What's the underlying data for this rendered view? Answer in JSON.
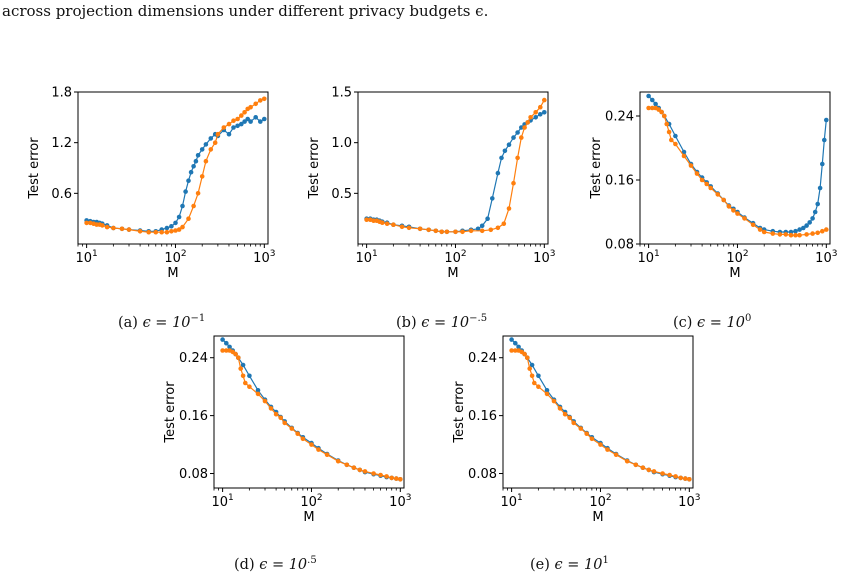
{
  "caption": {
    "text": "across projection dimensions under different privacy budgets ϵ."
  },
  "colors": {
    "series_a": "#1f77b4",
    "series_b": "#ff7f0e"
  },
  "chart_data": [
    {
      "id": "a",
      "type": "line",
      "scale_x": "log",
      "subcaption": {
        "label": "(a)",
        "eq": "ϵ = 10",
        "exp": "−1"
      },
      "xlabel": "M",
      "ylabel": "Test error",
      "xlim": [
        8,
        1100
      ],
      "ylim": [
        0.0,
        1.8
      ],
      "xticks": [
        {
          "v": 10,
          "base": "10",
          "exp": "1"
        },
        {
          "v": 100,
          "base": "10",
          "exp": "2"
        },
        {
          "v": 1000,
          "base": "10",
          "exp": "3"
        }
      ],
      "yticks": [
        {
          "v": 0.6,
          "label": "0.6"
        },
        {
          "v": 1.2,
          "label": "1.2"
        },
        {
          "v": 1.8,
          "label": "1.8"
        }
      ],
      "series": [
        {
          "color": "#1f77b4",
          "x": [
            10,
            11,
            12,
            13,
            14,
            15,
            17,
            20,
            25,
            30,
            40,
            50,
            60,
            70,
            80,
            90,
            100,
            110,
            120,
            130,
            140,
            150,
            160,
            170,
            180,
            200,
            220,
            250,
            280,
            300,
            350,
            400,
            450,
            500,
            550,
            600,
            650,
            700,
            800,
            900,
            1000
          ],
          "y": [
            0.28,
            0.27,
            0.26,
            0.26,
            0.25,
            0.24,
            0.22,
            0.19,
            0.18,
            0.17,
            0.16,
            0.15,
            0.15,
            0.17,
            0.19,
            0.21,
            0.25,
            0.32,
            0.45,
            0.62,
            0.75,
            0.85,
            0.92,
            0.98,
            1.05,
            1.12,
            1.18,
            1.25,
            1.3,
            1.28,
            1.35,
            1.3,
            1.38,
            1.4,
            1.42,
            1.45,
            1.48,
            1.45,
            1.5,
            1.45,
            1.48
          ]
        },
        {
          "color": "#ff7f0e",
          "x": [
            10,
            11,
            12,
            13,
            14,
            15,
            17,
            20,
            25,
            30,
            40,
            50,
            60,
            70,
            80,
            90,
            100,
            110,
            120,
            140,
            160,
            180,
            200,
            220,
            250,
            280,
            300,
            350,
            400,
            450,
            500,
            550,
            600,
            650,
            700,
            800,
            900,
            1000
          ],
          "y": [
            0.25,
            0.25,
            0.24,
            0.23,
            0.23,
            0.22,
            0.2,
            0.19,
            0.18,
            0.17,
            0.15,
            0.14,
            0.14,
            0.14,
            0.14,
            0.15,
            0.16,
            0.17,
            0.2,
            0.3,
            0.45,
            0.6,
            0.8,
            0.98,
            1.12,
            1.2,
            1.3,
            1.38,
            1.42,
            1.46,
            1.48,
            1.52,
            1.56,
            1.6,
            1.62,
            1.66,
            1.7,
            1.72
          ]
        }
      ]
    },
    {
      "id": "b",
      "type": "line",
      "scale_x": "log",
      "subcaption": {
        "label": "(b)",
        "eq": "ϵ = 10",
        "exp": "−.5"
      },
      "xlabel": "M",
      "ylabel": "Test error",
      "xlim": [
        8,
        1100
      ],
      "ylim": [
        0.0,
        1.5
      ],
      "xticks": [
        {
          "v": 10,
          "base": "10",
          "exp": "1"
        },
        {
          "v": 100,
          "base": "10",
          "exp": "2"
        },
        {
          "v": 1000,
          "base": "10",
          "exp": "3"
        }
      ],
      "yticks": [
        {
          "v": 0.5,
          "label": "0.5"
        },
        {
          "v": 1.0,
          "label": "1.0"
        },
        {
          "v": 1.5,
          "label": "1.5"
        }
      ],
      "series": [
        {
          "color": "#1f77b4",
          "x": [
            10,
            11,
            12,
            13,
            14,
            15,
            17,
            20,
            25,
            30,
            40,
            50,
            60,
            70,
            80,
            100,
            120,
            150,
            180,
            200,
            230,
            260,
            300,
            330,
            360,
            400,
            450,
            500,
            550,
            600,
            650,
            700,
            800,
            900,
            1000
          ],
          "y": [
            0.25,
            0.25,
            0.24,
            0.24,
            0.23,
            0.22,
            0.21,
            0.19,
            0.18,
            0.17,
            0.15,
            0.14,
            0.13,
            0.12,
            0.12,
            0.12,
            0.13,
            0.14,
            0.15,
            0.18,
            0.25,
            0.45,
            0.7,
            0.85,
            0.92,
            0.98,
            1.05,
            1.1,
            1.15,
            1.18,
            1.2,
            1.22,
            1.25,
            1.28,
            1.3
          ]
        },
        {
          "color": "#ff7f0e",
          "x": [
            10,
            11,
            12,
            13,
            14,
            15,
            17,
            20,
            25,
            30,
            40,
            50,
            60,
            70,
            80,
            100,
            120,
            150,
            200,
            250,
            300,
            350,
            400,
            450,
            500,
            550,
            600,
            650,
            700,
            800,
            900,
            1000
          ],
          "y": [
            0.24,
            0.24,
            0.23,
            0.23,
            0.22,
            0.21,
            0.2,
            0.19,
            0.17,
            0.16,
            0.15,
            0.14,
            0.13,
            0.12,
            0.12,
            0.12,
            0.12,
            0.13,
            0.13,
            0.14,
            0.16,
            0.2,
            0.35,
            0.6,
            0.85,
            1.05,
            1.15,
            1.2,
            1.25,
            1.3,
            1.35,
            1.42
          ]
        }
      ]
    },
    {
      "id": "c",
      "type": "line",
      "scale_x": "log",
      "subcaption": {
        "label": "(c)",
        "eq": "ϵ = 10",
        "exp": "0"
      },
      "xlabel": "M",
      "ylabel": "Test error",
      "xlim": [
        8,
        1100
      ],
      "ylim": [
        0.08,
        0.27
      ],
      "xticks": [
        {
          "v": 10,
          "base": "10",
          "exp": "1"
        },
        {
          "v": 100,
          "base": "10",
          "exp": "2"
        },
        {
          "v": 1000,
          "base": "10",
          "exp": "3"
        }
      ],
      "yticks": [
        {
          "v": 0.08,
          "label": "0.08"
        },
        {
          "v": 0.16,
          "label": "0.16"
        },
        {
          "v": 0.24,
          "label": "0.24"
        }
      ],
      "series": [
        {
          "color": "#1f77b4",
          "x": [
            10,
            11,
            12,
            13,
            14,
            15,
            17,
            20,
            25,
            30,
            35,
            40,
            45,
            50,
            60,
            70,
            80,
            90,
            100,
            120,
            150,
            180,
            200,
            250,
            300,
            350,
            400,
            450,
            500,
            550,
            600,
            650,
            700,
            750,
            800,
            850,
            900,
            950,
            1000
          ],
          "y": [
            0.265,
            0.26,
            0.255,
            0.25,
            0.245,
            0.24,
            0.23,
            0.215,
            0.195,
            0.18,
            0.17,
            0.163,
            0.157,
            0.152,
            0.143,
            0.135,
            0.128,
            0.124,
            0.12,
            0.113,
            0.106,
            0.1,
            0.098,
            0.096,
            0.095,
            0.095,
            0.095,
            0.096,
            0.098,
            0.1,
            0.103,
            0.107,
            0.112,
            0.12,
            0.13,
            0.15,
            0.18,
            0.21,
            0.235
          ]
        },
        {
          "color": "#ff7f0e",
          "x": [
            10,
            11,
            12,
            13,
            14,
            15,
            16,
            17,
            18,
            20,
            25,
            30,
            35,
            40,
            45,
            50,
            60,
            70,
            80,
            90,
            100,
            120,
            150,
            180,
            200,
            250,
            300,
            350,
            400,
            450,
            500,
            600,
            700,
            800,
            900,
            1000
          ],
          "y": [
            0.25,
            0.25,
            0.25,
            0.248,
            0.245,
            0.24,
            0.23,
            0.22,
            0.21,
            0.205,
            0.19,
            0.178,
            0.168,
            0.16,
            0.155,
            0.15,
            0.142,
            0.135,
            0.127,
            0.122,
            0.118,
            0.112,
            0.104,
            0.098,
            0.095,
            0.093,
            0.092,
            0.092,
            0.091,
            0.091,
            0.091,
            0.092,
            0.093,
            0.094,
            0.096,
            0.098
          ]
        }
      ]
    },
    {
      "id": "d",
      "type": "line",
      "scale_x": "log",
      "subcaption": {
        "label": "(d)",
        "eq": "ϵ = 10",
        "exp": ".5"
      },
      "xlabel": "M",
      "ylabel": "Test error",
      "xlim": [
        8,
        1100
      ],
      "ylim": [
        0.06,
        0.27
      ],
      "xticks": [
        {
          "v": 10,
          "base": "10",
          "exp": "1"
        },
        {
          "v": 100,
          "base": "10",
          "exp": "2"
        },
        {
          "v": 1000,
          "base": "10",
          "exp": "3"
        }
      ],
      "yticks": [
        {
          "v": 0.08,
          "label": "0.08"
        },
        {
          "v": 0.16,
          "label": "0.16"
        },
        {
          "v": 0.24,
          "label": "0.24"
        }
      ],
      "series": [
        {
          "color": "#1f77b4",
          "x": [
            10,
            11,
            12,
            13,
            14,
            15,
            17,
            20,
            25,
            30,
            35,
            40,
            45,
            50,
            60,
            70,
            80,
            100,
            120,
            150,
            200,
            250,
            300,
            350,
            400,
            500,
            600,
            700,
            800,
            900,
            1000
          ],
          "y": [
            0.265,
            0.26,
            0.255,
            0.25,
            0.245,
            0.24,
            0.23,
            0.215,
            0.195,
            0.182,
            0.172,
            0.165,
            0.158,
            0.152,
            0.143,
            0.136,
            0.13,
            0.122,
            0.115,
            0.107,
            0.098,
            0.092,
            0.088,
            0.085,
            0.082,
            0.079,
            0.077,
            0.075,
            0.074,
            0.073,
            0.072
          ]
        },
        {
          "color": "#ff7f0e",
          "x": [
            10,
            11,
            12,
            13,
            14,
            15,
            16,
            17,
            18,
            20,
            25,
            30,
            35,
            40,
            45,
            50,
            60,
            70,
            80,
            100,
            120,
            150,
            200,
            250,
            300,
            350,
            400,
            500,
            600,
            700,
            800,
            900,
            1000
          ],
          "y": [
            0.25,
            0.25,
            0.25,
            0.248,
            0.245,
            0.24,
            0.225,
            0.215,
            0.205,
            0.2,
            0.19,
            0.18,
            0.17,
            0.162,
            0.157,
            0.15,
            0.142,
            0.135,
            0.128,
            0.12,
            0.113,
            0.106,
            0.097,
            0.092,
            0.088,
            0.085,
            0.083,
            0.08,
            0.078,
            0.076,
            0.074,
            0.073,
            0.072
          ]
        }
      ]
    },
    {
      "id": "e",
      "type": "line",
      "scale_x": "log",
      "subcaption": {
        "label": "(e)",
        "eq": "ϵ = 10",
        "exp": "1"
      },
      "xlabel": "M",
      "ylabel": "Test error",
      "xlim": [
        8,
        1100
      ],
      "ylim": [
        0.06,
        0.27
      ],
      "xticks": [
        {
          "v": 10,
          "base": "10",
          "exp": "1"
        },
        {
          "v": 100,
          "base": "10",
          "exp": "2"
        },
        {
          "v": 1000,
          "base": "10",
          "exp": "3"
        }
      ],
      "yticks": [
        {
          "v": 0.08,
          "label": "0.08"
        },
        {
          "v": 0.16,
          "label": "0.16"
        },
        {
          "v": 0.24,
          "label": "0.24"
        }
      ],
      "series": [
        {
          "color": "#1f77b4",
          "x": [
            10,
            11,
            12,
            13,
            14,
            15,
            17,
            20,
            25,
            30,
            35,
            40,
            45,
            50,
            60,
            70,
            80,
            100,
            120,
            150,
            200,
            250,
            300,
            350,
            400,
            500,
            600,
            700,
            800,
            900,
            1000
          ],
          "y": [
            0.265,
            0.26,
            0.255,
            0.25,
            0.245,
            0.24,
            0.23,
            0.215,
            0.195,
            0.182,
            0.172,
            0.165,
            0.158,
            0.152,
            0.143,
            0.136,
            0.13,
            0.122,
            0.115,
            0.107,
            0.098,
            0.092,
            0.088,
            0.085,
            0.082,
            0.079,
            0.077,
            0.075,
            0.074,
            0.073,
            0.072
          ]
        },
        {
          "color": "#ff7f0e",
          "x": [
            10,
            11,
            12,
            13,
            14,
            15,
            16,
            17,
            18,
            20,
            25,
            30,
            35,
            40,
            45,
            50,
            60,
            70,
            80,
            100,
            120,
            150,
            200,
            250,
            300,
            350,
            400,
            500,
            600,
            700,
            800,
            900,
            1000
          ],
          "y": [
            0.25,
            0.25,
            0.25,
            0.248,
            0.245,
            0.24,
            0.225,
            0.215,
            0.205,
            0.2,
            0.19,
            0.18,
            0.17,
            0.162,
            0.157,
            0.15,
            0.142,
            0.135,
            0.128,
            0.12,
            0.113,
            0.106,
            0.097,
            0.092,
            0.088,
            0.085,
            0.083,
            0.08,
            0.078,
            0.076,
            0.074,
            0.073,
            0.072
          ]
        }
      ]
    }
  ]
}
